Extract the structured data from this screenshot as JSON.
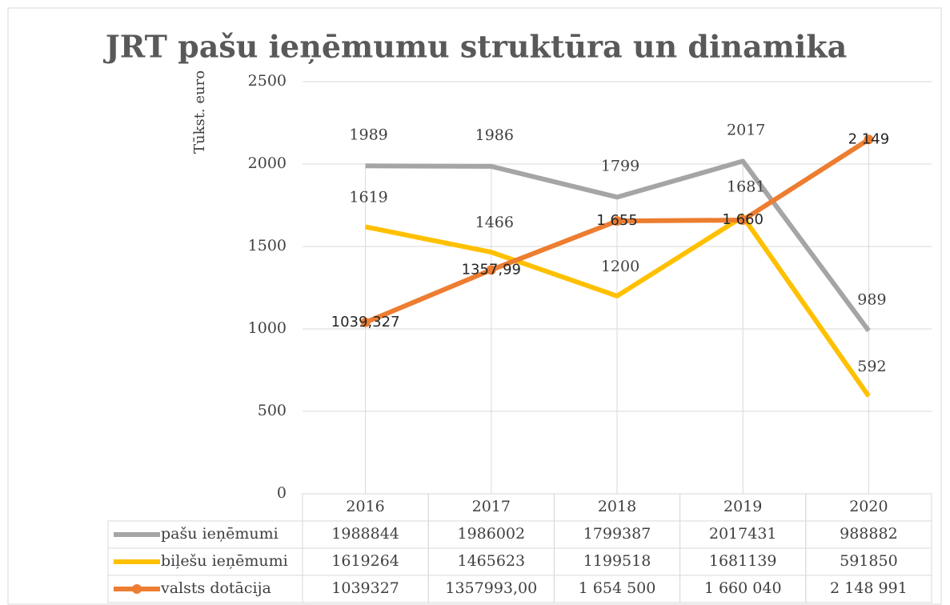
{
  "chart_data": {
    "type": "line",
    "title": "JRT pašu ieņēmumu struktūra un dinamika",
    "y_axis_label": "Tūkst. euro",
    "categories": [
      "2016",
      "2017",
      "2018",
      "2019",
      "2020"
    ],
    "ylim": [
      0,
      2500
    ],
    "yticks": [
      0,
      500,
      1000,
      1500,
      2000,
      2500
    ],
    "grid": true,
    "series": [
      {
        "name": "pašu ieņēmumi",
        "color": "#a5a5a5",
        "marker": false,
        "values": [
          1988.844,
          1986.002,
          1799.387,
          2017.431,
          988.882
        ],
        "value_labels": [
          "1989",
          "1986",
          "1799",
          "2017",
          "989"
        ]
      },
      {
        "name": "biļešu ieņēmumi",
        "color": "#ffc000",
        "marker": false,
        "values": [
          1619.264,
          1465.623,
          1199.518,
          1681.139,
          591.85
        ],
        "value_labels": [
          "1619",
          "1466",
          "1200",
          "1681",
          "592"
        ]
      },
      {
        "name": "valsts dotācija",
        "color": "#ed7d31",
        "marker": true,
        "values": [
          1039.327,
          1357.993,
          1654.5,
          1660.04,
          2148.991
        ],
        "value_labels": [
          "1039,327",
          "1357,99",
          "1 655",
          "1 660",
          "2 149"
        ]
      }
    ],
    "data_table": [
      [
        "1988844",
        "1986002",
        "1799387",
        "2017431",
        "988882"
      ],
      [
        "1619264",
        "1465623",
        "1199518",
        "1681139",
        "591850"
      ],
      [
        "1039327",
        "1357993,00",
        "1 654 500",
        "1 660 040",
        "2 148 991"
      ]
    ]
  }
}
